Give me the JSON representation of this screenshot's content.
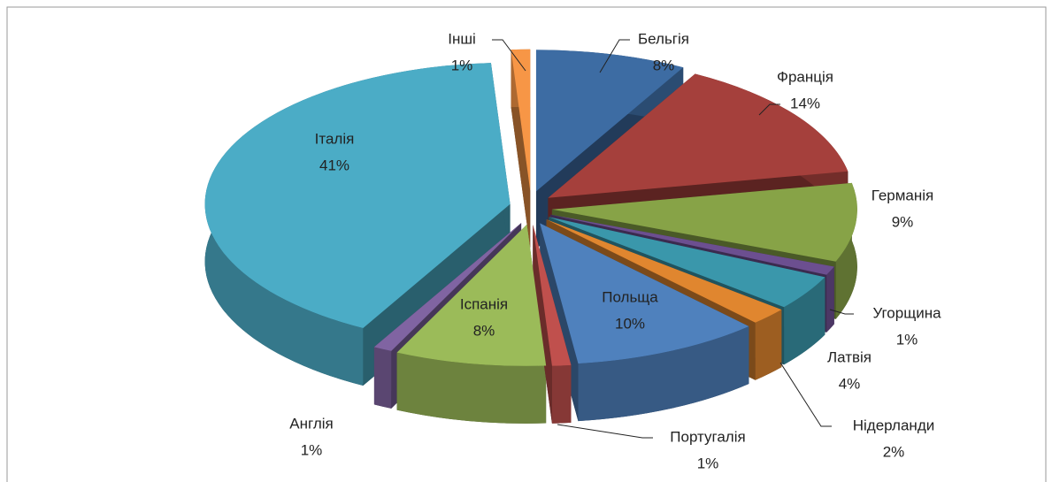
{
  "chart_data": {
    "type": "pie3d",
    "categories": [
      "Бельгія",
      "Франція",
      "Германія",
      "Угорщина",
      "Латвія",
      "Нідерланди",
      "Польща",
      "Португалія",
      "Іспанія",
      "Англія",
      "Італія",
      "Інші"
    ],
    "values": [
      8,
      14,
      9,
      1,
      4,
      2,
      10,
      1,
      8,
      1,
      41,
      1
    ],
    "value_labels": [
      "8%",
      "14%",
      "9%",
      "1%",
      "4%",
      "2%",
      "10%",
      "1%",
      "8%",
      "1%",
      "41%",
      "1%"
    ],
    "colors": [
      "#3d6ca3",
      "#a5403c",
      "#87a347",
      "#6c4f90",
      "#3a97ab",
      "#e0862f",
      "#4f81bd",
      "#c0504d",
      "#9bbb59",
      "#8064a2",
      "#4bacc6",
      "#f79646"
    ]
  }
}
